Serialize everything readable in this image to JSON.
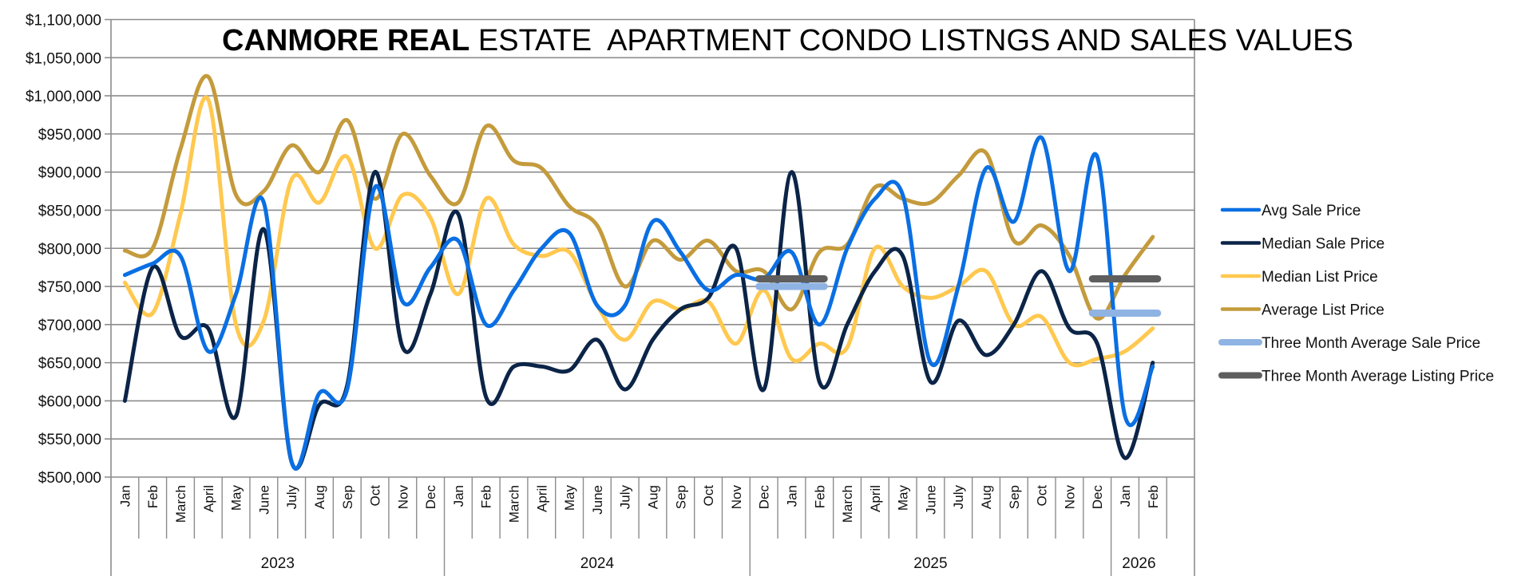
{
  "chart_data": {
    "type": "line",
    "title_bold": "CANMORE REAL",
    "title_rest": " ESTATE  APARTMENT CONDO LISTNGS AND SALES VALUES",
    "xlabel": "",
    "ylabel": "",
    "ylim": [
      500000,
      1100000
    ],
    "ytick_step": 50000,
    "yticks": [
      "$500,000",
      "$550,000",
      "$600,000",
      "$650,000",
      "$700,000",
      "$750,000",
      "$800,000",
      "$850,000",
      "$900,000",
      "$950,000",
      "$1,000,000",
      "$1,050,000",
      "$1,100,000"
    ],
    "grid": true,
    "legend_position": "right",
    "smooth": true,
    "year_groups": [
      {
        "label": "2023",
        "months": [
          "Jan",
          "Feb",
          "March",
          "April",
          "May",
          "June",
          "July",
          "Aug",
          "Sep",
          "Oct",
          "Nov",
          "Dec"
        ]
      },
      {
        "label": "2024",
        "months": [
          "Jan",
          "Feb",
          "March",
          "April",
          "May",
          "June",
          "July",
          "Aug",
          "Sep",
          "Oct",
          "Nov"
        ]
      },
      {
        "label": "2025",
        "months": [
          "Dec",
          "Jan",
          "Feb",
          "March",
          "April",
          "May",
          "June",
          "July",
          "Aug",
          "Sep",
          "Oct",
          "Nov",
          "Dec"
        ]
      },
      {
        "label": "2026",
        "months": [
          "Jan",
          "Feb",
          ""
        ]
      }
    ],
    "series": [
      {
        "name": "Avg Sale Price",
        "color": "#0A6FE3",
        "style": "line",
        "values": [
          765000,
          780000,
          790000,
          665000,
          740000,
          860000,
          520000,
          610000,
          615000,
          880000,
          730000,
          775000,
          810000,
          700000,
          745000,
          800000,
          820000,
          725000,
          725000,
          835000,
          795000,
          745000,
          765000,
          760000,
          795000,
          700000,
          800000,
          865000,
          870000,
          650000,
          750000,
          905000,
          835000,
          945000,
          770000,
          920000,
          580000,
          645000
        ]
      },
      {
        "name": "Median Sale Price",
        "color": "#0B2447",
        "style": "line",
        "values": [
          600000,
          775000,
          685000,
          695000,
          580000,
          825000,
          520000,
          595000,
          620000,
          900000,
          670000,
          740000,
          845000,
          605000,
          645000,
          645000,
          640000,
          680000,
          615000,
          680000,
          720000,
          735000,
          800000,
          615000,
          900000,
          625000,
          700000,
          770000,
          790000,
          625000,
          705000,
          660000,
          700000,
          770000,
          695000,
          675000,
          525000,
          650000
        ]
      },
      {
        "name": "Median List Price",
        "color": "#FFC84F",
        "style": "line",
        "values": [
          755000,
          715000,
          845000,
          995000,
          700000,
          705000,
          890000,
          860000,
          920000,
          800000,
          870000,
          840000,
          740000,
          865000,
          805000,
          790000,
          795000,
          725000,
          680000,
          730000,
          720000,
          730000,
          675000,
          745000,
          655000,
          675000,
          670000,
          800000,
          750000,
          735000,
          750000,
          770000,
          700000,
          710000,
          650000,
          655000,
          665000,
          695000
        ]
      },
      {
        "name": "Average List Price",
        "color": "#C49B3C",
        "style": "line",
        "values": [
          797000,
          800000,
          930000,
          1025000,
          870000,
          875000,
          935000,
          900000,
          968000,
          865000,
          950000,
          895000,
          860000,
          960000,
          915000,
          905000,
          855000,
          830000,
          750000,
          810000,
          785000,
          810000,
          770000,
          770000,
          720000,
          795000,
          805000,
          880000,
          865000,
          860000,
          895000,
          925000,
          810000,
          830000,
          790000,
          708000,
          765000,
          815000
        ]
      },
      {
        "name": "Three Month Average Sale Price",
        "color": "#8FB3E3",
        "style": "bar-segment",
        "segments": [
          {
            "from": "Dec 2024",
            "to": "Feb 2025",
            "value": 750000
          },
          {
            "from": "Dec 2025",
            "to": "Feb 2026",
            "value": 715000
          }
        ]
      },
      {
        "name": "Three Month Average Listing Price",
        "color": "#5E5E5E",
        "style": "bar-segment",
        "segments": [
          {
            "from": "Dec 2024",
            "to": "Feb 2025",
            "value": 760000
          },
          {
            "from": "Dec 2025",
            "to": "Feb 2026",
            "value": 760000
          }
        ]
      }
    ],
    "segment_index_ranges": [
      [
        23,
        25
      ],
      [
        35,
        37
      ]
    ]
  }
}
